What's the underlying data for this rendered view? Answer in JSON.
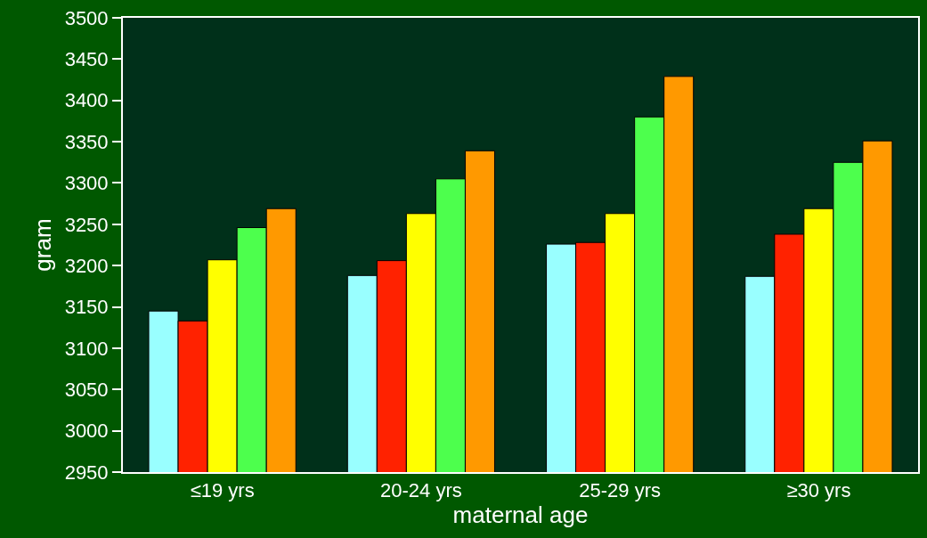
{
  "chart_data": {
    "type": "bar",
    "xlabel": "maternal age",
    "ylabel": "gram",
    "categories": [
      "≤19 yrs",
      "20-24 yrs",
      "25-29 yrs",
      "≥30 yrs"
    ],
    "series": [
      {
        "color": "#99ffff",
        "values": [
          3145,
          3188,
          3226,
          3187
        ]
      },
      {
        "color": "#ff2200",
        "values": [
          3133,
          3206,
          3228,
          3238
        ]
      },
      {
        "color": "#ffff00",
        "values": [
          3207,
          3263,
          3263,
          3269
        ]
      },
      {
        "color": "#4dff4d",
        "values": [
          3246,
          3305,
          3380,
          3325
        ]
      },
      {
        "color": "#ff9900",
        "values": [
          3269,
          3339,
          3429,
          3351
        ]
      }
    ],
    "ylim": [
      2950,
      3500
    ],
    "yticks": [
      2950,
      3000,
      3050,
      3100,
      3150,
      3200,
      3250,
      3300,
      3350,
      3400,
      3450,
      3500
    ],
    "grid": false
  }
}
